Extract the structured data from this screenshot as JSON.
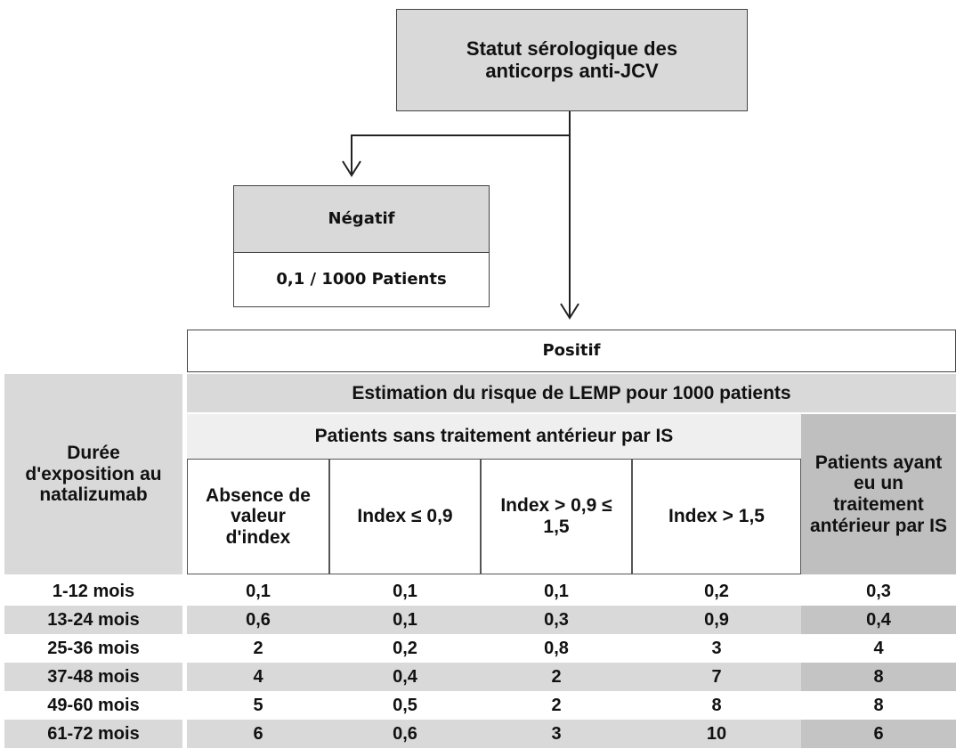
{
  "root": {
    "label": "Statut sérologique des anticorps anti-JCV"
  },
  "negative": {
    "label": "Négatif",
    "value": "0,1 / 1000 Patients"
  },
  "positive": {
    "label": "Positif",
    "table": {
      "title": "Estimation du risque de LEMP pour 1000 patients",
      "row_header": "Durée d'exposition au natalizumab",
      "group": "Patients sans traitement antérieur par IS",
      "columns": [
        "Absence de valeur d'index",
        "Index ≤ 0,9",
        "Index > 0,9 ≤ 1,5",
        "Index > 1,5"
      ],
      "last_column": "Patients ayant eu un traitement antérieur par IS",
      "rows": [
        [
          "1-12 mois",
          "0,1",
          "0,1",
          "0,1",
          "0,2",
          "0,3"
        ],
        [
          "13-24 mois",
          "0,6",
          "0,1",
          "0,3",
          "0,9",
          "0,4"
        ],
        [
          "25-36 mois",
          "2",
          "0,2",
          "0,8",
          "3",
          "4"
        ],
        [
          "37-48 mois",
          "4",
          "0,4",
          "2",
          "7",
          "8"
        ],
        [
          "49-60 mois",
          "5",
          "0,5",
          "2",
          "8",
          "8"
        ],
        [
          "61-72 mois",
          "6",
          "0,6",
          "3",
          "10",
          "6"
        ]
      ]
    }
  }
}
